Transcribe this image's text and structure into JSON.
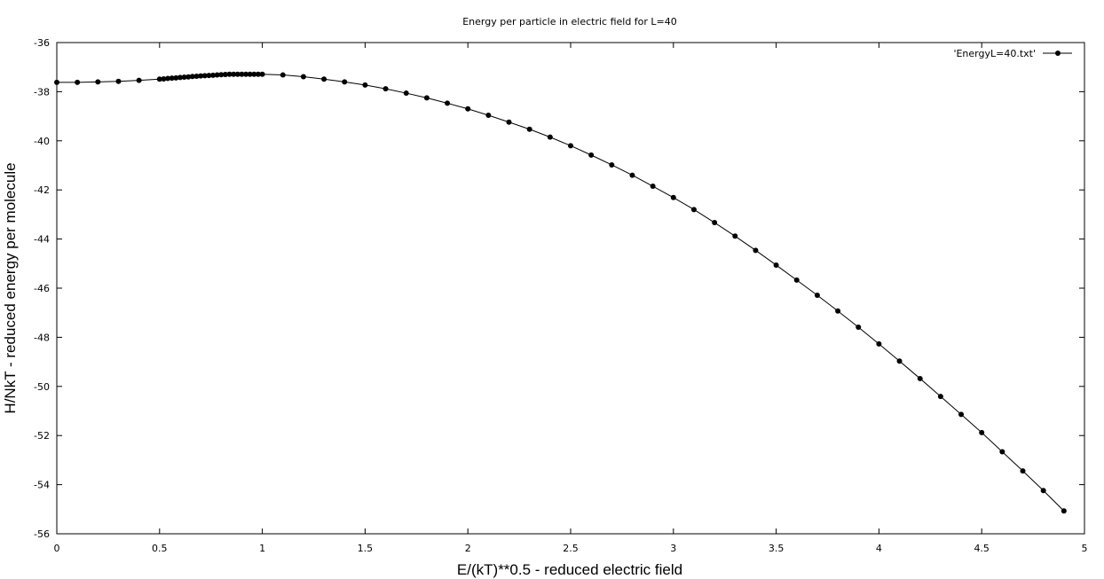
{
  "chart_data": {
    "type": "line",
    "title": "Energy per particle in electric field for L=40",
    "xlabel": "E/(kT)**0.5 - reduced electric field",
    "ylabel": "H/NkT - reduced energy per molecule",
    "xlim": [
      0,
      5
    ],
    "ylim": [
      -56,
      -36
    ],
    "x_ticks": [
      "0",
      "0.5",
      "1",
      "1.5",
      "2",
      "2.5",
      "3",
      "3.5",
      "4",
      "4.5",
      "5"
    ],
    "y_ticks": [
      "-36",
      "-38",
      "-40",
      "-42",
      "-44",
      "-46",
      "-48",
      "-50",
      "-52",
      "-54",
      "-56"
    ],
    "grid": false,
    "legend_position": "top-right",
    "series": [
      {
        "name": "'EnergyL=40.txt'",
        "color": "#000000",
        "marker": "filled-circle",
        "x": [
          0,
          0.1,
          0.2,
          0.3,
          0.4,
          0.5,
          0.52,
          0.54,
          0.56,
          0.58,
          0.6,
          0.62,
          0.64,
          0.66,
          0.68,
          0.7,
          0.72,
          0.74,
          0.76,
          0.78,
          0.8,
          0.82,
          0.84,
          0.86,
          0.88,
          0.9,
          0.92,
          0.94,
          0.96,
          0.98,
          1.0,
          1.1,
          1.2,
          1.3,
          1.4,
          1.5,
          1.6,
          1.7,
          1.8,
          1.9,
          2.0,
          2.1,
          2.2,
          2.3,
          2.4,
          2.5,
          2.6,
          2.7,
          2.8,
          2.9,
          3.0,
          3.1,
          3.2,
          3.3,
          3.4,
          3.5,
          3.6,
          3.7,
          3.8,
          3.9,
          4.0,
          4.1,
          4.2,
          4.3,
          4.4,
          4.5,
          4.6,
          4.7,
          4.8,
          4.9
        ],
        "y": [
          -37.62,
          -37.62,
          -37.6,
          -37.58,
          -37.54,
          -37.49,
          -37.48,
          -37.46,
          -37.45,
          -37.44,
          -37.42,
          -37.41,
          -37.4,
          -37.38,
          -37.37,
          -37.36,
          -37.35,
          -37.34,
          -37.33,
          -37.32,
          -37.31,
          -37.3,
          -37.29,
          -37.29,
          -37.29,
          -37.29,
          -37.29,
          -37.29,
          -37.29,
          -37.29,
          -37.29,
          -37.32,
          -37.39,
          -37.49,
          -37.6,
          -37.73,
          -37.88,
          -38.06,
          -38.25,
          -38.47,
          -38.7,
          -38.96,
          -39.24,
          -39.53,
          -39.85,
          -40.2,
          -40.58,
          -40.98,
          -41.4,
          -41.85,
          -42.31,
          -42.8,
          -43.33,
          -43.88,
          -44.46,
          -45.06,
          -45.67,
          -46.29,
          -46.93,
          -47.59,
          -48.27,
          -48.97,
          -49.68,
          -50.41,
          -51.14,
          -51.88,
          -52.66,
          -53.44,
          -54.24,
          -55.07
        ]
      }
    ]
  }
}
